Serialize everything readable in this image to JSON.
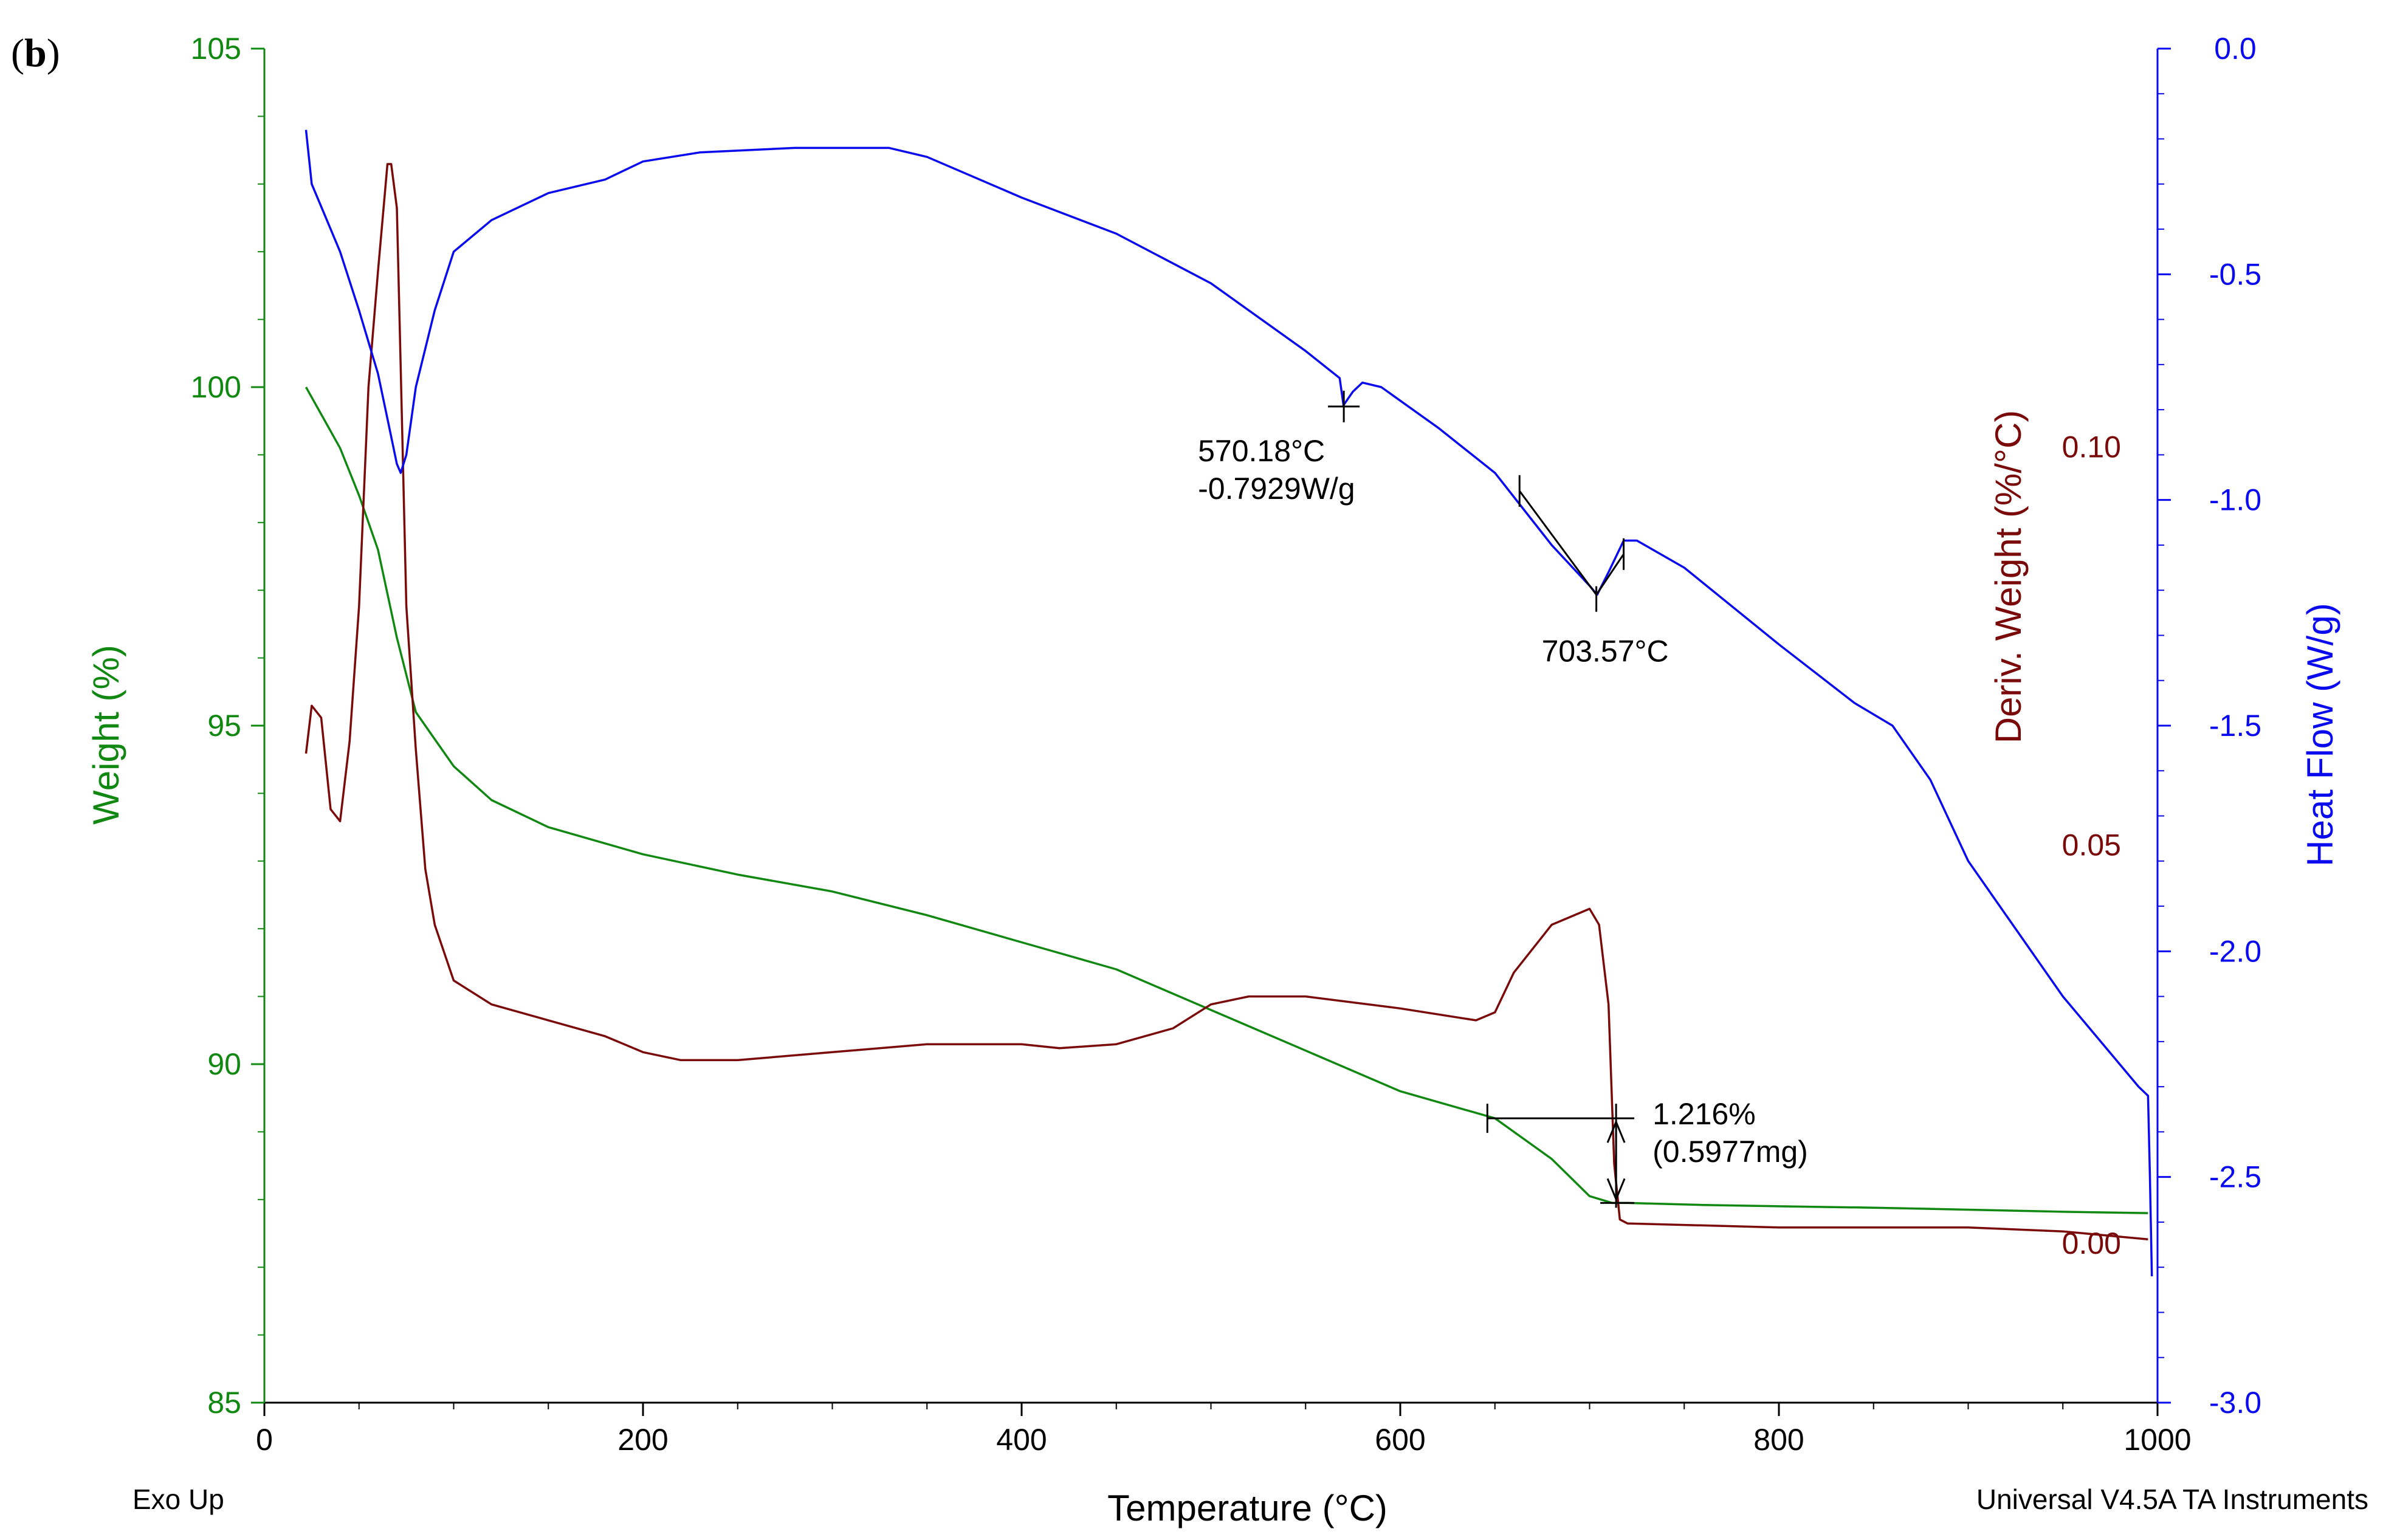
{
  "panel_label": "b",
  "footer": {
    "left": "Exo Up",
    "right": "Universal V4.5A TA Instruments"
  },
  "colors": {
    "weight": "#118811",
    "deriv": "#7a0a0a",
    "heat": "#0a0aee",
    "annotation": "#000000"
  },
  "chart_data": {
    "type": "line",
    "title": "",
    "xlabel": "Temperature (°C)",
    "xlim": [
      0,
      1000
    ],
    "xticks": [
      "0",
      "200",
      "400",
      "600",
      "800",
      "1000"
    ],
    "y_left": {
      "label": "Weight (%)",
      "lim": [
        85,
        105
      ],
      "ticks": [
        "85",
        "90",
        "95",
        "100",
        "105"
      ]
    },
    "y_deriv": {
      "label": "Deriv. Weight (%/°C)",
      "ticks": [
        "0.00",
        "0.05",
        "0.10"
      ],
      "tick_values": [
        0.0,
        0.05,
        0.1
      ],
      "lim": [
        -0.02,
        0.15
      ]
    },
    "y_right": {
      "label": "Heat Flow (W/g)",
      "lim": [
        -3.0,
        0.0
      ],
      "ticks": [
        "-3.0",
        "-2.5",
        "-2.0",
        "-1.5",
        "-1.0",
        "-0.5",
        "0.0"
      ]
    },
    "series": [
      {
        "name": "Weight",
        "axis": "left",
        "x": [
          22,
          30,
          40,
          50,
          60,
          70,
          80,
          90,
          100,
          120,
          150,
          200,
          250,
          300,
          350,
          400,
          450,
          500,
          550,
          600,
          650,
          680,
          700,
          712,
          720,
          760,
          800,
          850,
          900,
          950,
          995
        ],
        "values": [
          100.0,
          99.6,
          99.1,
          98.4,
          97.6,
          96.3,
          95.2,
          94.8,
          94.4,
          93.9,
          93.5,
          93.1,
          92.8,
          92.55,
          92.2,
          91.8,
          91.4,
          90.8,
          90.2,
          89.6,
          89.2,
          88.6,
          88.05,
          87.95,
          87.95,
          87.92,
          87.9,
          87.88,
          87.85,
          87.82,
          87.8
        ]
      },
      {
        "name": "Deriv. Weight",
        "axis": "deriv",
        "x": [
          22,
          25,
          30,
          35,
          40,
          45,
          50,
          55,
          60,
          65,
          67,
          70,
          72,
          75,
          80,
          85,
          90,
          100,
          120,
          150,
          180,
          200,
          220,
          250,
          300,
          350,
          400,
          420,
          450,
          480,
          500,
          520,
          550,
          600,
          640,
          650,
          660,
          680,
          700,
          705,
          710,
          713,
          716,
          720,
          800,
          900,
          950,
          995
        ],
        "values": [
          0.0615,
          0.0675,
          0.066,
          0.0545,
          0.053,
          0.063,
          0.08,
          0.1075,
          0.122,
          0.1355,
          0.1355,
          0.13,
          0.11,
          0.08,
          0.062,
          0.047,
          0.04,
          0.033,
          0.03,
          0.028,
          0.026,
          0.024,
          0.023,
          0.023,
          0.024,
          0.025,
          0.025,
          0.0245,
          0.025,
          0.027,
          0.03,
          0.031,
          0.031,
          0.0295,
          0.028,
          0.029,
          0.034,
          0.04,
          0.042,
          0.04,
          0.03,
          0.01,
          0.003,
          0.0025,
          0.002,
          0.002,
          0.0015,
          0.0005
        ]
      },
      {
        "name": "Heat Flow",
        "axis": "right",
        "x": [
          22,
          25,
          30,
          40,
          50,
          60,
          65,
          70,
          72,
          75,
          80,
          90,
          100,
          120,
          150,
          180,
          200,
          230,
          280,
          330,
          350,
          400,
          450,
          500,
          550,
          568,
          570,
          575,
          580,
          590,
          600,
          620,
          650,
          665,
          680,
          700,
          704,
          710,
          718,
          725,
          750,
          800,
          840,
          860,
          880,
          900,
          950,
          990,
          995,
          996,
          997
        ],
        "values": [
          -0.18,
          -0.3,
          -0.35,
          -0.45,
          -0.58,
          -0.72,
          -0.82,
          -0.92,
          -0.94,
          -0.9,
          -0.75,
          -0.58,
          -0.45,
          -0.38,
          -0.32,
          -0.29,
          -0.25,
          -0.23,
          -0.22,
          -0.22,
          -0.24,
          -0.33,
          -0.41,
          -0.52,
          -0.67,
          -0.73,
          -0.79,
          -0.76,
          -0.74,
          -0.75,
          -0.78,
          -0.84,
          -0.94,
          -1.02,
          -1.1,
          -1.19,
          -1.21,
          -1.16,
          -1.09,
          -1.09,
          -1.15,
          -1.32,
          -1.45,
          -1.5,
          -1.62,
          -1.8,
          -2.1,
          -2.3,
          -2.32,
          -2.5,
          -2.72
        ]
      }
    ],
    "annotations": {
      "peak1": {
        "label1": "570.18°C",
        "label2": "-0.7929W/g",
        "x": 570.18,
        "y": -0.7929
      },
      "peak2": {
        "label": "703.57°C",
        "x": 703.57,
        "y": -1.21,
        "baseline_start": [
          663,
          -0.98
        ],
        "baseline_end": [
          718,
          -1.12
        ]
      },
      "step": {
        "label1": "1.216%",
        "label2": "(0.5977mg)",
        "x_start": 646,
        "x_end": 714,
        "y_top": 89.2,
        "y_bottom": 87.95
      }
    }
  }
}
